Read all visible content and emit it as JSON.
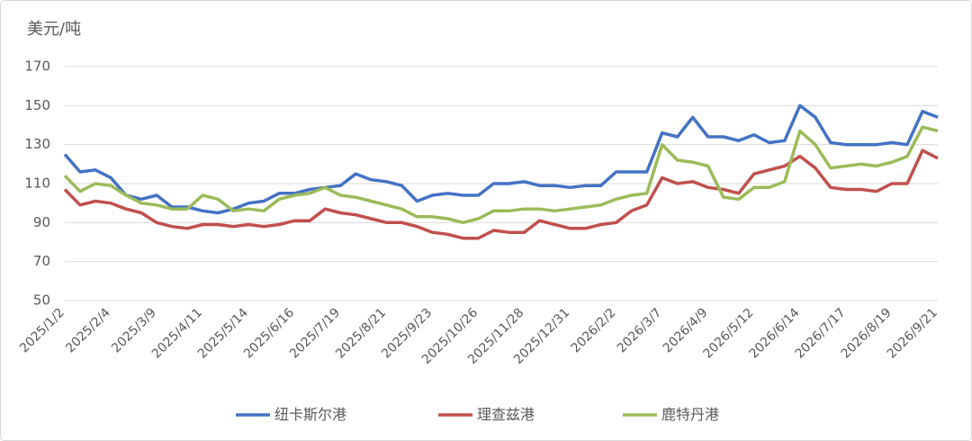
{
  "chart_data": {
    "type": "line",
    "y_label": "美元/吨",
    "categories": [
      "2025/1/2",
      null,
      null,
      "2025/2/4",
      null,
      null,
      "2025/3/9",
      null,
      null,
      "2025/4/11",
      null,
      null,
      "2025/5/14",
      null,
      null,
      "2025/6/16",
      null,
      null,
      "2025/7/19",
      null,
      null,
      "2025/8/21",
      null,
      null,
      "2025/9/23",
      null,
      null,
      "2025/10/26",
      null,
      null,
      "2025/11/28",
      null,
      null,
      "2025/12/31",
      null,
      null,
      "2026/2/2",
      null,
      null,
      "2026/3/7",
      null,
      null,
      "2026/4/9",
      null,
      null,
      "2026/5/12",
      null,
      null,
      "2026/6/14",
      null,
      null,
      "2026/7/17",
      null,
      null,
      "2026/8/19",
      null,
      null,
      "2026/9/21"
    ],
    "series": [
      {
        "name": "纽卡斯尔港",
        "color": "#4472c4",
        "values": [
          125,
          116,
          117,
          113,
          104,
          102,
          104,
          98,
          98,
          96,
          95,
          97,
          100,
          101,
          105,
          105,
          107,
          108,
          109,
          115,
          112,
          111,
          109,
          101,
          104,
          105,
          104,
          104,
          110,
          110,
          111,
          109,
          109,
          108,
          109,
          109,
          116,
          116,
          116,
          136,
          134,
          144,
          134,
          134,
          132,
          135,
          131,
          132,
          150,
          144,
          131,
          130,
          130,
          130,
          131,
          130,
          147,
          144
        ]
      },
      {
        "name": "理查兹港",
        "color": "#c0504d",
        "values": [
          107,
          99,
          101,
          100,
          97,
          95,
          90,
          88,
          87,
          89,
          89,
          88,
          89,
          88,
          89,
          91,
          91,
          97,
          95,
          94,
          92,
          90,
          90,
          88,
          85,
          84,
          82,
          82,
          86,
          85,
          85,
          91,
          89,
          87,
          87,
          89,
          90,
          96,
          99,
          113,
          110,
          111,
          108,
          107,
          105,
          115,
          117,
          119,
          124,
          118,
          108,
          107,
          107,
          106,
          110,
          110,
          127,
          123
        ]
      },
      {
        "name": "鹿特丹港",
        "color": "#9bbb59",
        "values": [
          114,
          106,
          110,
          109,
          104,
          100,
          99,
          97,
          97,
          104,
          102,
          96,
          97,
          96,
          102,
          104,
          105,
          108,
          104,
          103,
          101,
          99,
          97,
          93,
          93,
          92,
          90,
          92,
          96,
          96,
          97,
          97,
          96,
          97,
          98,
          99,
          102,
          104,
          105,
          130,
          122,
          121,
          119,
          103,
          102,
          108,
          108,
          111,
          137,
          130,
          118,
          119,
          120,
          119,
          121,
          124,
          139,
          137
        ]
      }
    ],
    "ylim": [
      50,
      170
    ],
    "yticks": [
      50,
      70,
      90,
      110,
      130,
      150,
      170
    ],
    "grid": true,
    "legend": "bottom"
  }
}
